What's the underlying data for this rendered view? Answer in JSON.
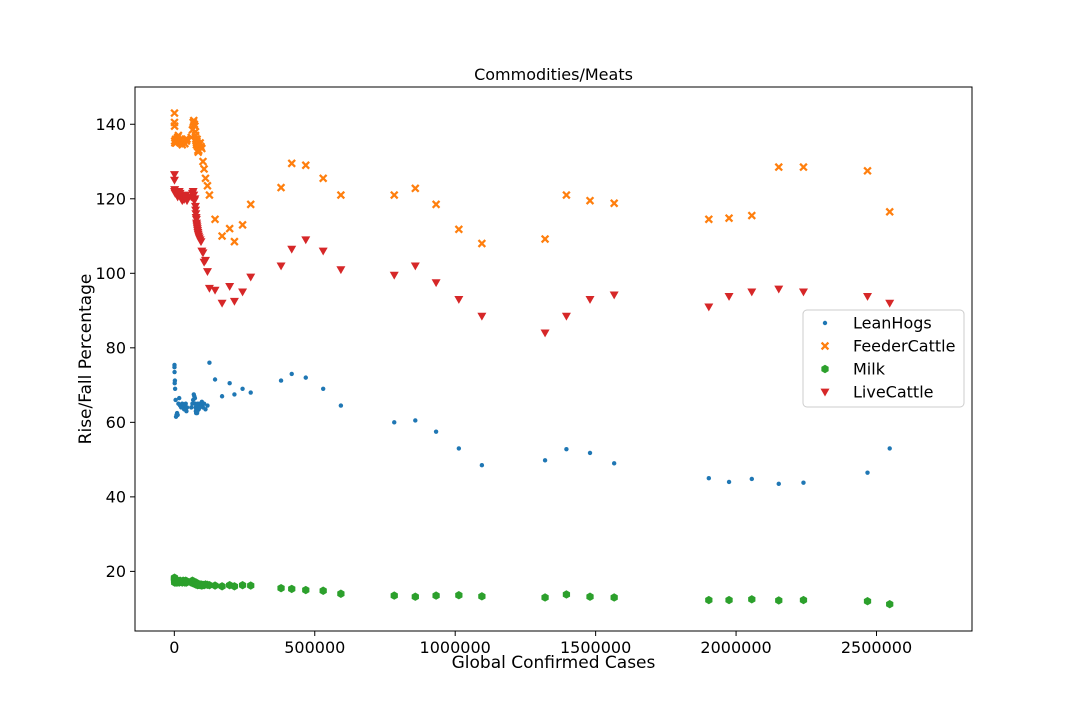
{
  "chart_data": {
    "type": "scatter",
    "title": "Commodities/Meats",
    "xlabel": "Global Confirmed Cases",
    "ylabel": "Rise/Fall Percentage",
    "xlim": [
      -140000,
      2840000
    ],
    "ylim": [
      4,
      150
    ],
    "xticks": [
      0,
      500000,
      1000000,
      1500000,
      2000000,
      2500000
    ],
    "xtick_labels": [
      "0",
      "500000",
      "1000000",
      "1500000",
      "2000000",
      "2500000"
    ],
    "yticks": [
      20,
      40,
      60,
      80,
      100,
      120,
      140
    ],
    "ytick_labels": [
      "20",
      "40",
      "60",
      "80",
      "100",
      "120",
      "140"
    ],
    "grid": false,
    "legend_position": "center-right",
    "x": [
      555,
      580,
      846,
      1320,
      2014,
      2798,
      4593,
      6065,
      7818,
      9826,
      11953,
      14557,
      17391,
      20630,
      24554,
      28276,
      31481,
      34886,
      37558,
      40554,
      43103,
      45171,
      60374,
      64469,
      67102,
      69268,
      71240,
      73332,
      75184,
      75700,
      76677,
      77673,
      78651,
      79205,
      80088,
      80996,
      82000,
      83000,
      84000,
      85000,
      87000,
      89000,
      92000,
      95000,
      98000,
      102000,
      106000,
      111000,
      118000,
      125000,
      145000,
      170000,
      197000,
      214000,
      243000,
      272000,
      380000,
      418000,
      468000,
      530000,
      593000,
      783000,
      858000,
      932000,
      1013000,
      1095000,
      1320000,
      1396000,
      1480000,
      1566000,
      1903000,
      1975000,
      2056000,
      2152000,
      2240000,
      2468000,
      2547000
    ],
    "series": [
      {
        "name": "LeanHogs",
        "color": "#1f77b4",
        "marker": "dot",
        "values": [
          75.4,
          74.8,
          73.5,
          70.5,
          71.2,
          69.0,
          66.0,
          61.5,
          62.0,
          62.5,
          62.0,
          65.0,
          66.5,
          64.5,
          64.0,
          65.0,
          64.0,
          63.5,
          64.5,
          65.0,
          63.0,
          64.0,
          64.0,
          65.0,
          66.0,
          67.5,
          67.0,
          66.5,
          65.0,
          64.0,
          63.0,
          62.5,
          63.5,
          64.5,
          63.0,
          62.5,
          63.0,
          64.0,
          65.0,
          64.5,
          63.5,
          64.0,
          65.0,
          64.5,
          65.5,
          64.0,
          65.0,
          63.5,
          64.5,
          76.0,
          71.5,
          67.0,
          70.5,
          67.5,
          69.0,
          68.0,
          71.2,
          73.0,
          72.0,
          69.0,
          64.5,
          60.0,
          60.5,
          57.5,
          53.0,
          48.5,
          49.8,
          52.8,
          51.8,
          49.0,
          45.0,
          44.0,
          44.8,
          43.5,
          43.8,
          46.5,
          53.0
        ]
      },
      {
        "name": "FeederCattle",
        "color": "#ff7f0e",
        "marker": "x",
        "values": [
          143.0,
          140.5,
          139.5,
          135.5,
          135.0,
          135.5,
          136.0,
          135.0,
          135.5,
          136.0,
          136.5,
          137.0,
          135.5,
          136.0,
          135.0,
          134.5,
          135.5,
          135.0,
          134.8,
          136.0,
          135.5,
          136.0,
          136.5,
          138.5,
          140.5,
          141.0,
          140.0,
          139.5,
          138.0,
          137.0,
          136.0,
          135.5,
          134.5,
          135.0,
          135.5,
          136.0,
          135.0,
          134.0,
          133.0,
          132.5,
          133.0,
          134.5,
          135.0,
          134.0,
          133.5,
          130.0,
          128.0,
          125.5,
          123.5,
          121.0,
          114.5,
          110.0,
          112.0,
          108.5,
          113.0,
          118.5,
          123.0,
          129.5,
          129.0,
          125.5,
          121.0,
          121.0,
          122.8,
          118.5,
          111.8,
          108.0,
          109.2,
          121.0,
          119.5,
          118.8,
          114.5,
          114.8,
          115.5,
          128.5,
          128.5,
          127.5,
          116.5
        ]
      },
      {
        "name": "Milk",
        "color": "#2ca02c",
        "marker": "hexagon",
        "values": [
          18.3,
          18.0,
          17.5,
          17.0,
          17.5,
          17.2,
          17.8,
          17.0,
          17.5,
          17.0,
          17.5,
          17.3,
          17.0,
          17.5,
          17.2,
          17.0,
          17.5,
          17.3,
          17.0,
          17.5,
          17.0,
          17.3,
          17.0,
          17.5,
          16.8,
          17.0,
          17.2,
          16.8,
          17.0,
          16.5,
          16.8,
          17.0,
          16.5,
          16.5,
          16.5,
          16.6,
          16.5,
          16.3,
          16.5,
          16.4,
          16.4,
          16.5,
          16.3,
          16.5,
          16.2,
          16.4,
          16.3,
          16.5,
          16.4,
          16.3,
          16.2,
          16.0,
          16.3,
          16.0,
          16.3,
          16.2,
          15.5,
          15.3,
          15.0,
          14.8,
          14.0,
          13.5,
          13.2,
          13.5,
          13.6,
          13.3,
          13.0,
          13.8,
          13.2,
          13.0,
          12.3,
          12.3,
          12.5,
          12.2,
          12.3,
          12.0,
          11.2
        ]
      },
      {
        "name": "LiveCattle",
        "color": "#d62728",
        "marker": "triangle-down",
        "values": [
          126.5,
          125.0,
          122.0,
          122.5,
          122.0,
          121.5,
          122.0,
          121.5,
          122.0,
          121.0,
          120.5,
          121.0,
          122.0,
          121.5,
          120.0,
          119.5,
          120.0,
          119.8,
          120.5,
          121.0,
          120.0,
          119.5,
          120.5,
          121.5,
          122.0,
          121.0,
          119.5,
          120.0,
          118.0,
          117.0,
          116.0,
          115.0,
          114.5,
          113.5,
          113.0,
          112.5,
          112.0,
          111.5,
          111.0,
          110.5,
          110.0,
          109.5,
          109.0,
          108.5,
          106.0,
          105.5,
          103.0,
          103.5,
          100.5,
          96.0,
          95.5,
          92.0,
          96.5,
          92.5,
          95.0,
          99.0,
          102.0,
          106.5,
          109.0,
          106.0,
          101.0,
          99.5,
          102.0,
          97.5,
          93.0,
          88.5,
          84.0,
          88.5,
          93.0,
          94.2,
          91.0,
          93.8,
          95.0,
          95.8,
          95.0,
          93.8,
          92.0
        ]
      }
    ]
  }
}
